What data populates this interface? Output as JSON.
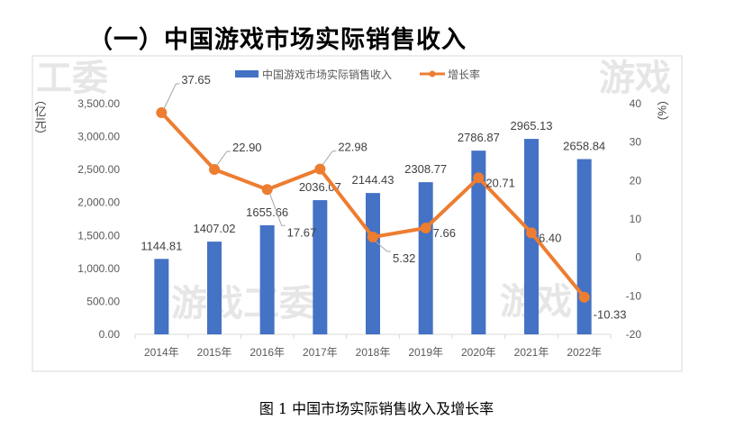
{
  "heading": "（一）中国游戏市场实际销售收入",
  "caption": "图 1 中国市场实际销售收入及增长率",
  "watermarks": [
    "工委",
    "游戏",
    "游戏工委",
    "游戏"
  ],
  "chart_data": {
    "type": "bar+line",
    "categories": [
      "2014年",
      "2015年",
      "2016年",
      "2017年",
      "2018年",
      "2019年",
      "2020年",
      "2021年",
      "2022年"
    ],
    "series": [
      {
        "name": "中国游戏市场实际销售收入",
        "type": "bar",
        "axis": "left",
        "color": "#4472C4",
        "values": [
          1144.81,
          1407.02,
          1655.66,
          2036.07,
          2144.43,
          2308.77,
          2786.87,
          2965.13,
          2658.84
        ],
        "labels": [
          "1144.81",
          "1407.02",
          "1655.66",
          "2036.07",
          "2144.43",
          "2308.77",
          "2786.87",
          "2965.13",
          "2658.84"
        ]
      },
      {
        "name": "增长率",
        "type": "line",
        "axis": "right",
        "color": "#ED7D31",
        "values": [
          37.65,
          22.9,
          17.67,
          22.98,
          5.32,
          7.66,
          20.71,
          6.4,
          -10.33
        ],
        "labels": [
          "37.65",
          "22.90",
          "17.67",
          "22.98",
          "5.32",
          "7.66",
          "20.71",
          "6.40",
          "-10.33"
        ]
      }
    ],
    "left_axis": {
      "label": "（亿元）",
      "range": [
        0,
        3500
      ],
      "ticks": [
        "0.00",
        "500.00",
        "1,000.00",
        "1,500.00",
        "2,000.00",
        "2,500.00",
        "3,000.00",
        "3,500.00"
      ]
    },
    "right_axis": {
      "label": "（%）",
      "range": [
        -20,
        40
      ],
      "ticks": [
        "-20",
        "-10",
        "0",
        "10",
        "20",
        "30",
        "40"
      ]
    },
    "legend_position": "top",
    "grid": false
  }
}
